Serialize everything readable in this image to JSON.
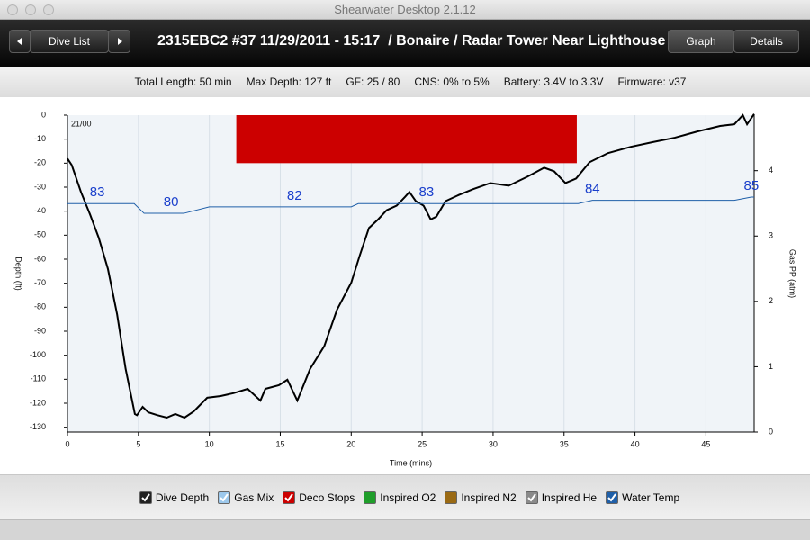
{
  "window": {
    "title": "Shearwater Desktop 2.1.12"
  },
  "toolbar": {
    "nav_label": "Dive List",
    "dive_title": "2315EBC2 #37 11/29/2011 - 15:17  / Bonaire / Radar Tower Near Lighthouse",
    "tabs": [
      "Graph",
      "Details"
    ]
  },
  "summary": [
    "Total Length: 50 min",
    "Max Depth: 127 ft",
    "GF: 25 / 80",
    "CNS: 0% to 5%",
    "Battery: 3.4V to 3.3V",
    "Firmware: v37"
  ],
  "chart_data": {
    "type": "line",
    "annotation": "21/00",
    "x_label": "Time (mins)",
    "y_label": "Depth (ft)",
    "y2_label": "Gas PP (atm)",
    "xlim": [
      0,
      48.4
    ],
    "xticks": [
      0,
      5,
      10,
      15,
      20,
      25,
      30,
      35,
      40,
      45
    ],
    "ylim": [
      -132,
      0
    ],
    "yticks": [
      0,
      -10,
      -20,
      -30,
      -40,
      -50,
      -60,
      -70,
      -80,
      -90,
      -100,
      -110,
      -120,
      -130
    ],
    "y2lim": [
      0,
      4.85
    ],
    "y2ticks": [
      0,
      1,
      2,
      3,
      4
    ],
    "grid": true,
    "series": [
      {
        "name": "Dive Depth",
        "color": "#000000",
        "x": [
          0,
          0.3,
          0.95,
          1.6,
          2.2,
          2.85,
          3.5,
          4.1,
          4.75,
          4.9,
          5.3,
          5.7,
          6.35,
          7,
          7.6,
          8.25,
          8.9,
          9.85,
          10.8,
          11.7,
          12.7,
          13.6,
          13.95,
          14.9,
          15.5,
          16.2,
          17.1,
          18.1,
          19,
          20,
          20.6,
          21.25,
          21.9,
          22.5,
          23.2,
          23.8,
          24.1,
          24.55,
          25.1,
          25.6,
          26,
          26.65,
          27.6,
          28.55,
          29.8,
          31.1,
          32.4,
          33.6,
          34.3,
          35.1,
          35.85,
          36.8,
          38.1,
          39.7,
          41.2,
          42.8,
          44.4,
          46,
          47,
          47.6,
          47.9,
          48.4
        ],
        "values": [
          -18.1,
          -20.8,
          -32,
          -41.5,
          -51,
          -64,
          -83,
          -105.7,
          -124.5,
          -125,
          -121.5,
          -123.8,
          -125,
          -126,
          -124.5,
          -126,
          -123.4,
          -117.7,
          -117,
          -115.8,
          -114,
          -118.9,
          -114,
          -112.5,
          -110.2,
          -118.9,
          -105.7,
          -96.2,
          -81,
          -69.8,
          -58.5,
          -47,
          -43.4,
          -39.6,
          -37.7,
          -34,
          -32,
          -35.8,
          -37.7,
          -43.4,
          -42.3,
          -35.8,
          -33.2,
          -30.9,
          -28.3,
          -29.4,
          -25.7,
          -21.9,
          -23.4,
          -28.3,
          -26.4,
          -19.6,
          -15.8,
          -13.2,
          -11.3,
          -9.4,
          -6.8,
          -4.5,
          -3.8,
          0,
          -3.8,
          0.5
        ]
      },
      {
        "name": "Water Temp",
        "color": "#1f5fa8",
        "label_color": "#1a3fcc",
        "templim": [
          12.5,
          110.3
        ],
        "x": [
          0,
          2.1,
          4.7,
          5.4,
          7.3,
          8.2,
          10,
          16,
          20,
          20.5,
          25.3,
          36,
          37,
          47,
          48.2,
          48.4
        ],
        "values": [
          83,
          83,
          83,
          80,
          80,
          80,
          82,
          82,
          82,
          83,
          83,
          83,
          84,
          84,
          85,
          85
        ],
        "value_labels": [
          null,
          "83",
          null,
          null,
          "80",
          null,
          null,
          "82",
          null,
          null,
          "83",
          null,
          "84",
          null,
          "85",
          null
        ]
      }
    ],
    "deco_stops": {
      "name": "Deco Stops",
      "color": "#cc0000",
      "x_start": 11.9,
      "x_end": 35.9,
      "top": 0,
      "depth": -20
    },
    "legend": [
      {
        "name": "Dive Depth",
        "checked": true,
        "color": "#222222"
      },
      {
        "name": "Gas Mix",
        "checked": true,
        "color": "#9cc8ec"
      },
      {
        "name": "Deco Stops",
        "checked": true,
        "color": "#cc0000"
      },
      {
        "name": "Inspired O2",
        "checked": false,
        "color": "#1f9e2a"
      },
      {
        "name": "Inspired N2",
        "checked": false,
        "color": "#9a6a14"
      },
      {
        "name": "Inspired He",
        "checked": true,
        "color": "#8a8a8a"
      },
      {
        "name": "Water Temp",
        "checked": true,
        "color": "#1f5fa8"
      }
    ]
  }
}
